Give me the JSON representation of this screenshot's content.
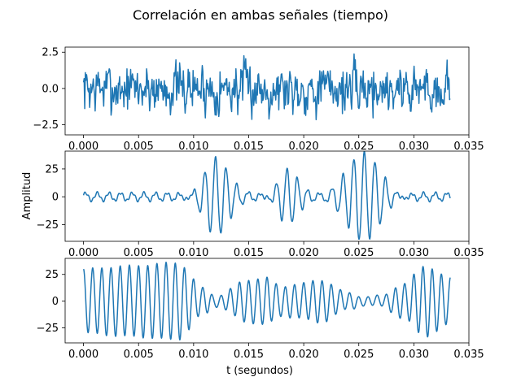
{
  "figure": {
    "title": "Correlación en ambas señales (tiempo)",
    "xlabel": "t (segundos)",
    "ylabel": "Amplitud"
  },
  "chart_data": [
    {
      "type": "line",
      "xlim": [
        -0.00167,
        0.035
      ],
      "ylim": [
        -3.2,
        2.85
      ],
      "xticks": [
        "0.000",
        "0.005",
        "0.010",
        "0.015",
        "0.020",
        "0.025",
        "0.030",
        "0.035"
      ],
      "yticks": [
        "-2.5",
        "0.0",
        "2.5"
      ],
      "ytick_values": [
        -2.5,
        0,
        2.5
      ],
      "line_color": "#1f77b4",
      "signal": {
        "kind": "noise",
        "x_end": 0.0333,
        "points": 600,
        "amplitude": 1.0,
        "seed": 7
      }
    },
    {
      "type": "line",
      "xlim": [
        -0.00167,
        0.035
      ],
      "ylim": [
        -40,
        41
      ],
      "xticks": [
        "0.000",
        "0.005",
        "0.010",
        "0.015",
        "0.020",
        "0.025",
        "0.030",
        "0.035"
      ],
      "yticks": [
        "-25",
        "0",
        "25"
      ],
      "ytick_values": [
        -25,
        0,
        25
      ],
      "line_color": "#1f77b4",
      "signal": {
        "kind": "bursts",
        "x_end": 0.0333,
        "points": 900,
        "base_freq": 1050,
        "base_amp": 3.5,
        "bursts": [
          {
            "center": 0.012,
            "width": 0.0016,
            "amp": 33,
            "freq": 1050
          },
          {
            "center": 0.0185,
            "width": 0.0013,
            "amp": 26,
            "freq": 1050
          },
          {
            "center": 0.0255,
            "width": 0.0022,
            "amp": 37,
            "freq": 1050
          }
        ]
      }
    },
    {
      "type": "line",
      "xlim": [
        -0.00167,
        0.035
      ],
      "ylim": [
        -39,
        40
      ],
      "xticks": [
        "0.000",
        "0.005",
        "0.010",
        "0.015",
        "0.020",
        "0.025",
        "0.030",
        "0.035"
      ],
      "yticks": [
        "-25",
        "0",
        "25"
      ],
      "ytick_values": [
        -25,
        0,
        25
      ],
      "line_color": "#1f77b4",
      "signal": {
        "kind": "am",
        "x_end": 0.0333,
        "points": 1200,
        "carrier_freq": 1200,
        "envelope_points": [
          [
            0.0,
            30
          ],
          [
            0.004,
            33
          ],
          [
            0.0085,
            36
          ],
          [
            0.011,
            12
          ],
          [
            0.012,
            5
          ],
          [
            0.015,
            20
          ],
          [
            0.0165,
            22
          ],
          [
            0.018,
            14
          ],
          [
            0.0195,
            16
          ],
          [
            0.0215,
            20
          ],
          [
            0.024,
            8
          ],
          [
            0.0255,
            4
          ],
          [
            0.027,
            5
          ],
          [
            0.029,
            16
          ],
          [
            0.031,
            33
          ],
          [
            0.0333,
            22
          ]
        ]
      }
    }
  ]
}
